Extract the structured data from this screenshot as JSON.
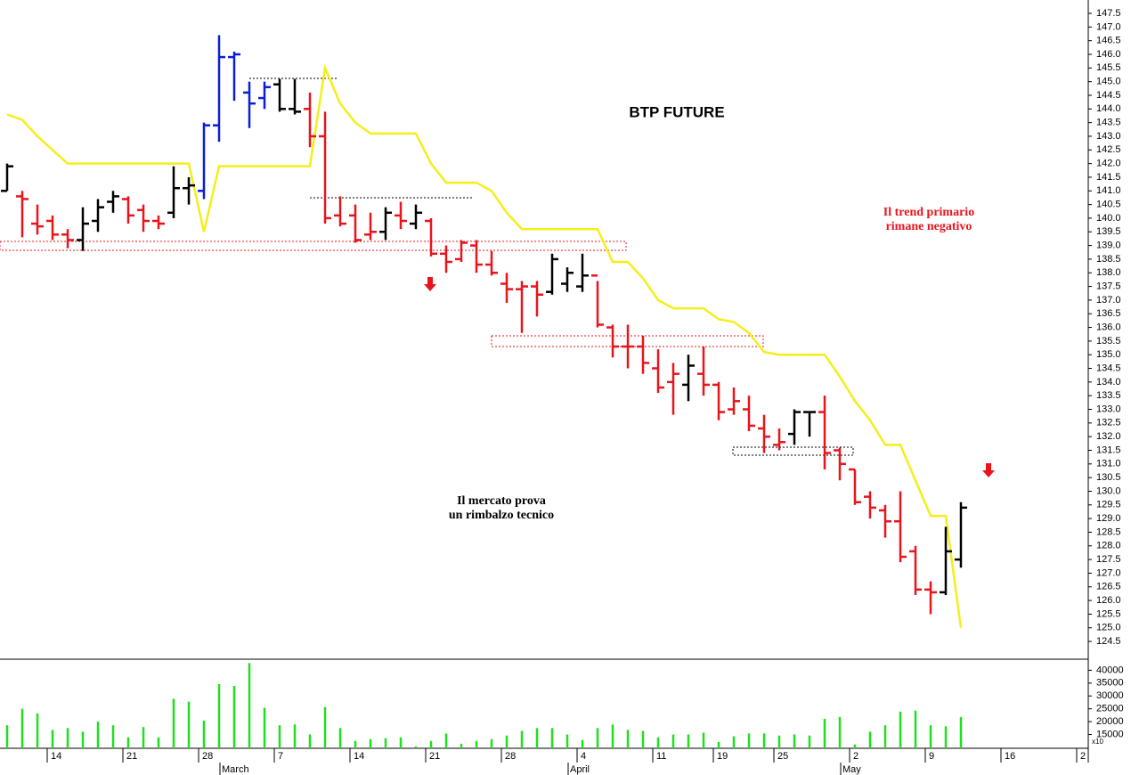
{
  "chart_data": [
    {
      "type": "ohlc",
      "title": "BTP FUTURE",
      "open": [
        141.0,
        140.8,
        139.8,
        139.9,
        139.4,
        139.2,
        139.9,
        140.6,
        140.7,
        140.3,
        139.9,
        140.2,
        141.1,
        141.0,
        143.4,
        145.9,
        144.6,
        144.4,
        144.9,
        144.0,
        144.0,
        143.0,
        140.1,
        140.1,
        139.4,
        139.5,
        140.1,
        139.8,
        139.9,
        138.7,
        138.5,
        139.0,
        138.3,
        137.6,
        137.4,
        137.5,
        137.3,
        137.6,
        137.5,
        137.9,
        136.0,
        135.3,
        135.3,
        134.5,
        134.0,
        133.9,
        134.3,
        133.9,
        133.0,
        133.0,
        132.3,
        131.7,
        132.1,
        132.9,
        132.9,
        131.5,
        130.8,
        129.8,
        129.3,
        128.9,
        127.8,
        126.4,
        126.3,
        127.5
      ],
      "high": [
        142.0,
        141.0,
        140.5,
        140.1,
        139.6,
        140.4,
        140.7,
        141.0,
        140.8,
        140.5,
        140.1,
        141.9,
        141.5,
        143.5,
        146.7,
        146.1,
        145.0,
        145.0,
        145.1,
        145.1,
        144.6,
        143.9,
        140.8,
        140.5,
        140.2,
        140.4,
        140.6,
        140.5,
        140.0,
        139.0,
        139.2,
        139.2,
        138.8,
        138.0,
        137.7,
        137.7,
        138.7,
        138.2,
        138.7,
        137.7,
        136.1,
        136.1,
        135.7,
        135.2,
        134.7,
        135.0,
        135.3,
        134.0,
        133.8,
        133.5,
        132.8,
        132.3,
        133.0,
        132.9,
        133.5,
        131.6,
        130.8,
        130.0,
        129.5,
        130.0,
        128.0,
        126.7,
        128.7,
        129.6
      ],
      "low": [
        141.0,
        139.3,
        139.4,
        139.2,
        138.9,
        138.8,
        139.5,
        140.2,
        139.8,
        139.5,
        139.6,
        140.0,
        140.5,
        140.7,
        142.8,
        144.3,
        143.3,
        144.0,
        143.9,
        143.8,
        142.6,
        139.8,
        139.7,
        139.1,
        139.2,
        139.2,
        139.6,
        139.6,
        138.6,
        138.0,
        138.4,
        138.0,
        137.9,
        136.9,
        135.8,
        136.4,
        137.2,
        137.3,
        137.3,
        136.0,
        134.9,
        134.5,
        134.3,
        133.6,
        132.8,
        133.3,
        133.5,
        132.6,
        132.8,
        132.2,
        131.4,
        131.5,
        131.7,
        132.0,
        130.8,
        130.4,
        129.5,
        129.0,
        128.3,
        127.4,
        126.2,
        125.5,
        126.2,
        127.2
      ],
      "close": [
        141.9,
        140.7,
        139.7,
        139.4,
        139.2,
        139.8,
        140.4,
        140.8,
        140.1,
        139.9,
        139.8,
        141.1,
        141.2,
        143.4,
        145.9,
        146.0,
        144.2,
        144.8,
        144.0,
        143.9,
        143.0,
        140.0,
        139.8,
        139.2,
        139.5,
        140.2,
        139.9,
        140.2,
        138.7,
        138.4,
        139.1,
        138.3,
        138.0,
        137.4,
        137.5,
        137.2,
        138.5,
        138.0,
        137.9,
        136.1,
        135.3,
        135.3,
        134.7,
        133.8,
        134.3,
        134.6,
        133.9,
        132.9,
        133.3,
        132.4,
        132.0,
        131.8,
        132.9,
        132.9,
        131.4,
        131.0,
        129.6,
        129.4,
        128.9,
        127.6,
        126.4,
        126.3,
        127.8,
        129.4
      ],
      "bar_colors": [
        "#000000",
        "#e8141c",
        "#e8141c",
        "#e8141c",
        "#e8141c",
        "#000000",
        "#000000",
        "#000000",
        "#e8141c",
        "#e8141c",
        "#e8141c",
        "#000000",
        "#000000",
        "#0a1ed8",
        "#0a1ed8",
        "#0a1ed8",
        "#0a1ed8",
        "#0a1ed8",
        "#000000",
        "#000000",
        "#e8141c",
        "#e8141c",
        "#e8141c",
        "#e8141c",
        "#e8141c",
        "#000000",
        "#e8141c",
        "#000000",
        "#e8141c",
        "#e8141c",
        "#e8141c",
        "#e8141c",
        "#e8141c",
        "#e8141c",
        "#e8141c",
        "#e8141c",
        "#000000",
        "#000000",
        "#000000",
        "#e8141c",
        "#e8141c",
        "#e8141c",
        "#e8141c",
        "#e8141c",
        "#e8141c",
        "#000000",
        "#e8141c",
        "#e8141c",
        "#e8141c",
        "#e8141c",
        "#e8141c",
        "#e8141c",
        "#000000",
        "#000000",
        "#e8141c",
        "#e8141c",
        "#e8141c",
        "#e8141c",
        "#e8141c",
        "#e8141c",
        "#e8141c",
        "#e8141c",
        "#000000",
        "#000000"
      ],
      "line": {
        "color": "#f5ee1a",
        "values": [
          143.8,
          143.6,
          143.0,
          142.5,
          142.0,
          142.0,
          142.0,
          142.0,
          142.0,
          142.0,
          142.0,
          142.0,
          142.0,
          139.5,
          141.9,
          141.9,
          141.9,
          141.9,
          141.9,
          141.9,
          141.9,
          145.5,
          144.2,
          143.5,
          143.1,
          143.1,
          143.1,
          143.1,
          142.0,
          141.3,
          141.3,
          141.3,
          141.0,
          140.2,
          139.6,
          139.6,
          139.6,
          139.6,
          139.6,
          139.6,
          138.4,
          138.4,
          137.8,
          137.0,
          136.7,
          136.7,
          136.7,
          136.3,
          136.2,
          135.8,
          135.1,
          135.0,
          135.0,
          135.0,
          135.0,
          134.2,
          133.3,
          132.6,
          131.7,
          131.7,
          130.4,
          129.1,
          129.1,
          125.0
        ]
      },
      "ylim": [
        123.85,
        147.99
      ],
      "yticks": [
        124.5,
        {
          "value": 125,
          "label": "125.0"
        },
        125.5,
        {
          "value": 126,
          "label": "126.0"
        },
        126.5,
        {
          "value": 127,
          "label": "127.0"
        },
        127.5,
        {
          "value": 128,
          "label": "128.0"
        },
        128.5,
        {
          "value": 129,
          "label": "129.0"
        },
        129.5,
        {
          "value": 130,
          "label": "130.0"
        },
        130.5,
        {
          "value": 131,
          "label": "131.0"
        },
        131.5,
        {
          "value": 132,
          "label": "132.0"
        },
        132.5,
        {
          "value": 133,
          "label": "133.0"
        },
        133.5,
        {
          "value": 134,
          "label": "134.0"
        },
        134.5,
        {
          "value": 135,
          "label": "135.0"
        },
        135.5,
        {
          "value": 136,
          "label": "136.0"
        },
        136.5,
        {
          "value": 137,
          "label": "137.0"
        },
        137.5,
        {
          "value": 138,
          "label": "138.0"
        },
        138.5,
        {
          "value": 139,
          "label": "139.0"
        },
        139.5,
        {
          "value": 140,
          "label": "140.0"
        },
        140.5,
        {
          "value": 141,
          "label": "141.0"
        },
        141.5,
        {
          "value": 142,
          "label": "142.0"
        },
        142.5,
        {
          "value": 143,
          "label": "143.0"
        },
        143.5,
        {
          "value": 144,
          "label": "144.0"
        },
        144.5,
        {
          "value": 145,
          "label": "145.0"
        },
        145.5,
        {
          "value": 146,
          "label": "146.0"
        },
        146.5,
        {
          "value": 147,
          "label": "147.0"
        },
        147.5
      ],
      "annotations": [
        {
          "color": "#000000",
          "lines": [
            "Il mercato prova",
            "un rimbalzo tecnico"
          ]
        },
        {
          "color": "#e8141c",
          "lines": [
            "Il trend primario",
            "rimane negativo"
          ]
        }
      ]
    },
    {
      "type": "bar",
      "color": "#1ee01e",
      "scale_label": "x10",
      "categories": [
        null,
        null,
        null,
        "14",
        null,
        null,
        null,
        null,
        "21",
        null,
        null,
        null,
        null,
        "28",
        null,
        null,
        null,
        null,
        "7",
        null,
        null,
        null,
        null,
        "14",
        null,
        null,
        null,
        null,
        "21",
        null,
        null,
        null,
        null,
        "28",
        null,
        null,
        null,
        null,
        "4",
        null,
        null,
        null,
        null,
        "11",
        null,
        null,
        null,
        "19",
        null,
        null,
        null,
        "25",
        null,
        null,
        null,
        null,
        "2",
        null,
        null,
        null,
        null,
        "9",
        null,
        null,
        null,
        null,
        "16",
        null,
        null,
        null,
        null,
        "2"
      ],
      "months": [
        null,
        null,
        null,
        null,
        null,
        null,
        null,
        null,
        null,
        null,
        null,
        null,
        null,
        null,
        null,
        "March",
        null,
        null,
        null,
        null,
        null,
        null,
        null,
        null,
        null,
        null,
        null,
        null,
        null,
        null,
        null,
        null,
        null,
        null,
        null,
        null,
        null,
        null,
        "April",
        null,
        null,
        null,
        null,
        null,
        null,
        null,
        null,
        null,
        null,
        null,
        null,
        null,
        null,
        null,
        null,
        null,
        "May",
        null,
        null,
        null,
        null,
        null,
        null,
        null,
        null,
        null,
        null,
        null,
        null,
        null,
        null,
        null
      ],
      "values": [
        18600,
        25000,
        23200,
        16800,
        17500,
        16100,
        20000,
        18600,
        13900,
        17900,
        13900,
        28900,
        27800,
        20400,
        34600,
        33900,
        42800,
        25400,
        18600,
        18900,
        15000,
        25700,
        17500,
        12500,
        13200,
        13600,
        13900,
        10400,
        12500,
        15400,
        11400,
        12500,
        13200,
        14600,
        16400,
        17500,
        17500,
        15000,
        12900,
        17500,
        18900,
        16800,
        16400,
        13900,
        15000,
        15000,
        15700,
        12100,
        14300,
        15400,
        15400,
        14600,
        15000,
        14600,
        21100,
        21800,
        11100,
        16100,
        18600,
        23900,
        24300,
        18600,
        18200,
        21800,
        null,
        null,
        null,
        null,
        null,
        null,
        null,
        null
      ],
      "ylim": [
        9640,
        44300
      ],
      "yticks": [
        15000,
        20000,
        25000,
        30000,
        35000,
        40000
      ]
    }
  ]
}
